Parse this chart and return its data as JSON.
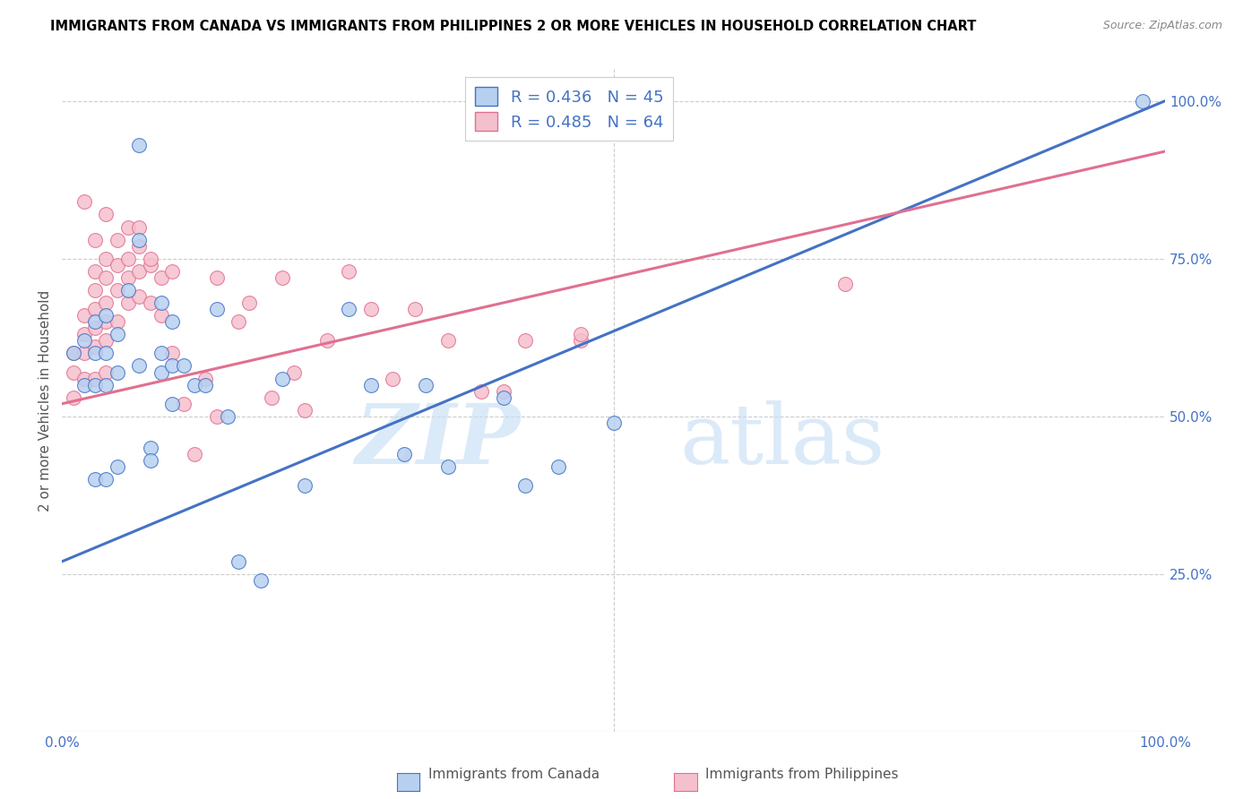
{
  "title": "IMMIGRANTS FROM CANADA VS IMMIGRANTS FROM PHILIPPINES 2 OR MORE VEHICLES IN HOUSEHOLD CORRELATION CHART",
  "source": "Source: ZipAtlas.com",
  "ylabel": "2 or more Vehicles in Household",
  "xlim": [
    0.0,
    1.0
  ],
  "ylim": [
    0.0,
    1.05
  ],
  "canada_R": 0.436,
  "canada_N": 45,
  "phil_R": 0.485,
  "phil_N": 64,
  "canada_color": "#b8d0f0",
  "phil_color": "#f5c0ce",
  "canada_line_color": "#4472c4",
  "phil_line_color": "#e07090",
  "legend_label_canada": "Immigrants from Canada",
  "legend_label_phil": "Immigrants from Philippines",
  "watermark_zip": "ZIP",
  "watermark_atlas": "atlas",
  "canada_line_x0": 0.0,
  "canada_line_y0": 0.27,
  "canada_line_x1": 1.0,
  "canada_line_y1": 1.0,
  "phil_line_x0": 0.0,
  "phil_line_y0": 0.52,
  "phil_line_x1": 1.0,
  "phil_line_y1": 0.92,
  "canada_x": [
    0.98,
    0.01,
    0.02,
    0.02,
    0.03,
    0.03,
    0.03,
    0.04,
    0.04,
    0.04,
    0.05,
    0.05,
    0.06,
    0.07,
    0.07,
    0.08,
    0.08,
    0.09,
    0.09,
    0.1,
    0.1,
    0.1,
    0.11,
    0.12,
    0.13,
    0.14,
    0.15,
    0.16,
    0.18,
    0.2,
    0.22,
    0.26,
    0.28,
    0.31,
    0.33,
    0.35,
    0.4,
    0.42,
    0.45,
    0.5,
    0.03,
    0.04,
    0.05,
    0.07,
    0.09
  ],
  "canada_y": [
    1.0,
    0.6,
    0.62,
    0.55,
    0.65,
    0.6,
    0.55,
    0.66,
    0.6,
    0.55,
    0.63,
    0.57,
    0.7,
    0.78,
    0.58,
    0.45,
    0.43,
    0.6,
    0.57,
    0.65,
    0.58,
    0.52,
    0.58,
    0.55,
    0.55,
    0.67,
    0.5,
    0.27,
    0.24,
    0.56,
    0.39,
    0.67,
    0.55,
    0.44,
    0.55,
    0.42,
    0.53,
    0.39,
    0.42,
    0.49,
    0.4,
    0.4,
    0.42,
    0.93,
    0.68
  ],
  "phil_x": [
    0.71,
    0.01,
    0.01,
    0.01,
    0.02,
    0.02,
    0.02,
    0.02,
    0.03,
    0.03,
    0.03,
    0.03,
    0.03,
    0.03,
    0.04,
    0.04,
    0.04,
    0.04,
    0.04,
    0.04,
    0.05,
    0.05,
    0.05,
    0.06,
    0.06,
    0.06,
    0.07,
    0.07,
    0.07,
    0.08,
    0.08,
    0.09,
    0.09,
    0.1,
    0.1,
    0.11,
    0.12,
    0.13,
    0.14,
    0.14,
    0.16,
    0.17,
    0.19,
    0.2,
    0.21,
    0.22,
    0.24,
    0.26,
    0.28,
    0.3,
    0.32,
    0.35,
    0.38,
    0.4,
    0.42,
    0.47,
    0.02,
    0.03,
    0.04,
    0.05,
    0.06,
    0.07,
    0.08,
    0.47
  ],
  "phil_y": [
    0.71,
    0.6,
    0.57,
    0.53,
    0.66,
    0.63,
    0.6,
    0.56,
    0.73,
    0.7,
    0.67,
    0.64,
    0.61,
    0.56,
    0.75,
    0.72,
    0.68,
    0.65,
    0.62,
    0.57,
    0.74,
    0.7,
    0.65,
    0.75,
    0.72,
    0.68,
    0.77,
    0.73,
    0.69,
    0.74,
    0.68,
    0.72,
    0.66,
    0.73,
    0.6,
    0.52,
    0.44,
    0.56,
    0.72,
    0.5,
    0.65,
    0.68,
    0.53,
    0.72,
    0.57,
    0.51,
    0.62,
    0.73,
    0.67,
    0.56,
    0.67,
    0.62,
    0.54,
    0.54,
    0.62,
    0.62,
    0.84,
    0.78,
    0.82,
    0.78,
    0.8,
    0.8,
    0.75,
    0.63
  ]
}
